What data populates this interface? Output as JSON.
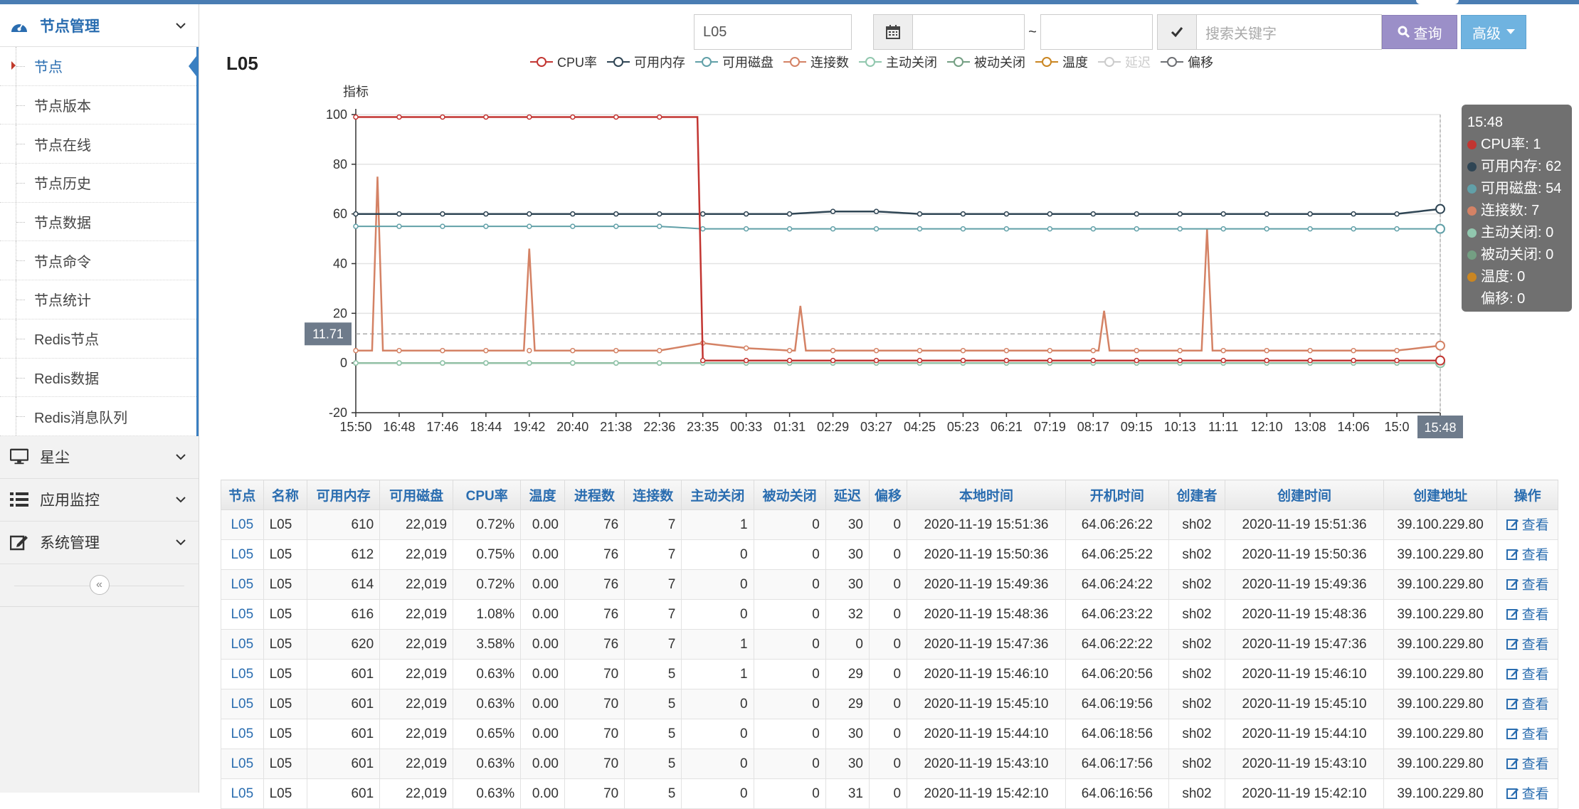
{
  "sidebar": {
    "groups": [
      {
        "label": "节点管理",
        "icon": "dashboard-icon",
        "expanded": true
      },
      {
        "label": "星尘",
        "icon": "monitor-icon",
        "expanded": false
      },
      {
        "label": "应用监控",
        "icon": "list-icon",
        "expanded": false
      },
      {
        "label": "系统管理",
        "icon": "edit-icon",
        "expanded": false
      }
    ],
    "items": [
      "节点",
      "节点版本",
      "节点在线",
      "节点历史",
      "节点数据",
      "节点命令",
      "节点统计",
      "Redis节点",
      "Redis数据",
      "Redis消息队列"
    ],
    "active_item": "节点",
    "collapse_glyph": "«"
  },
  "toolbar": {
    "node_value": "L05",
    "date_separator": "~",
    "search_placeholder": "搜索关键字",
    "query_label": "查询",
    "advanced_label": "高级"
  },
  "page_title": "L05",
  "colors": {
    "cpu": "#c23531",
    "mem": "#2f4554",
    "disk": "#61a0a8",
    "conn": "#d48265",
    "active_close": "#91c7ae",
    "passive_close": "#749f83",
    "temp": "#ca8622",
    "delay": "#bda29a",
    "offset": "#6e7074",
    "accent": "#2a6db0"
  },
  "chart_data": {
    "type": "line",
    "ylabel": "指标",
    "ylim": [
      -20,
      100
    ],
    "yticks": [
      "100",
      "80",
      "60",
      "40",
      "20",
      "0",
      "-20"
    ],
    "x": [
      "15:50",
      "16:48",
      "17:46",
      "18:44",
      "19:42",
      "20:40",
      "21:38",
      "22:36",
      "23:35",
      "00:33",
      "01:31",
      "02:29",
      "03:27",
      "04:25",
      "05:23",
      "06:21",
      "07:19",
      "08:17",
      "09:15",
      "10:13",
      "11:11",
      "12:10",
      "13:08",
      "14:06",
      "15:0",
      "15:48"
    ],
    "reference_value": "11.71",
    "pointer_x_label": "15:48",
    "legend": [
      {
        "name": "CPU率",
        "key": "cpu",
        "dim": false
      },
      {
        "name": "可用内存",
        "key": "mem",
        "dim": false
      },
      {
        "name": "可用磁盘",
        "key": "disk",
        "dim": false
      },
      {
        "name": "连接数",
        "key": "conn",
        "dim": false
      },
      {
        "name": "主动关闭",
        "key": "active_close",
        "dim": false
      },
      {
        "name": "被动关闭",
        "key": "passive_close",
        "dim": false
      },
      {
        "name": "温度",
        "key": "temp",
        "dim": false
      },
      {
        "name": "延迟",
        "key": "delay",
        "dim": true
      },
      {
        "name": "偏移",
        "key": "offset",
        "dim": false
      }
    ],
    "series": [
      {
        "name": "CPU率",
        "key": "cpu",
        "values": [
          99,
          99,
          99,
          99,
          99,
          99,
          99,
          99,
          1,
          1,
          1,
          1,
          1,
          1,
          1,
          1,
          1,
          1,
          1,
          1,
          1,
          1,
          1,
          1,
          1,
          1
        ]
      },
      {
        "name": "可用内存",
        "key": "mem",
        "values": [
          60,
          60,
          60,
          60,
          60,
          60,
          60,
          60,
          60,
          60,
          60,
          61,
          61,
          60,
          60,
          60,
          60,
          60,
          60,
          60,
          60,
          60,
          60,
          60,
          60,
          62
        ]
      },
      {
        "name": "可用磁盘",
        "key": "disk",
        "values": [
          55,
          55,
          55,
          55,
          55,
          55,
          55,
          55,
          54,
          54,
          54,
          54,
          54,
          54,
          54,
          54,
          54,
          54,
          54,
          54,
          54,
          54,
          54,
          54,
          54,
          54
        ]
      },
      {
        "name": "连接数",
        "key": "conn",
        "values": [
          5,
          5,
          5,
          5,
          5,
          5,
          5,
          5,
          8,
          6,
          5,
          5,
          5,
          5,
          5,
          5,
          5,
          5,
          5,
          5,
          5,
          5,
          5,
          5,
          5,
          7
        ]
      },
      {
        "name": "主动关闭",
        "key": "active_close",
        "values": [
          0,
          0,
          0,
          0,
          0,
          0,
          0,
          0,
          0,
          0,
          0,
          0,
          0,
          0,
          0,
          0,
          0,
          0,
          0,
          0,
          0,
          0,
          0,
          0,
          0,
          0
        ]
      },
      {
        "name": "被动关闭",
        "key": "passive_close",
        "values": [
          0,
          0,
          0,
          0,
          0,
          0,
          0,
          0,
          0,
          0,
          0,
          0,
          0,
          0,
          0,
          0,
          0,
          0,
          0,
          0,
          0,
          0,
          0,
          0,
          0,
          0
        ]
      },
      {
        "name": "温度",
        "key": "temp",
        "values": [
          0,
          0,
          0,
          0,
          0,
          0,
          0,
          0,
          0,
          0,
          0,
          0,
          0,
          0,
          0,
          0,
          0,
          0,
          0,
          0,
          0,
          0,
          0,
          0,
          0,
          0
        ]
      },
      {
        "name": "偏移",
        "key": "offset",
        "values": [
          0,
          0,
          0,
          0,
          0,
          0,
          0,
          0,
          0,
          0,
          0,
          0,
          0,
          0,
          0,
          0,
          0,
          0,
          0,
          0,
          0,
          0,
          0,
          0,
          0,
          0
        ]
      }
    ],
    "spikes": [
      {
        "series": "conn",
        "x_index": 0.5,
        "value": 75
      },
      {
        "series": "conn",
        "x_index": 4.0,
        "value": 46
      },
      {
        "series": "conn",
        "x_index": 10.3,
        "value": 23
      },
      {
        "series": "conn",
        "x_index": 17.3,
        "value": 21
      },
      {
        "series": "conn",
        "x_index": 19.6,
        "value": 54
      }
    ]
  },
  "tooltip": {
    "time": "15:48",
    "rows": [
      {
        "key": "cpu",
        "text": "CPU率: 1"
      },
      {
        "key": "mem",
        "text": "可用内存: 62"
      },
      {
        "key": "disk",
        "text": "可用磁盘: 54"
      },
      {
        "key": "conn",
        "text": "连接数: 7"
      },
      {
        "key": "active_close",
        "text": "主动关闭: 0"
      },
      {
        "key": "passive_close",
        "text": "被动关闭: 0"
      },
      {
        "key": "temp",
        "text": "温度: 0"
      },
      {
        "key": "",
        "text": "偏移: 0"
      }
    ]
  },
  "table": {
    "columns": [
      "节点",
      "名称",
      "可用内存",
      "可用磁盘",
      "CPU率",
      "温度",
      "进程数",
      "连接数",
      "主动关闭",
      "被动关闭",
      "延迟",
      "偏移",
      "本地时间",
      "开机时间",
      "创建者",
      "创建时间",
      "创建地址",
      "操作"
    ],
    "view_label": "查看",
    "rows": [
      [
        "L05",
        "L05",
        "610",
        "22,019",
        "0.72%",
        "0.00",
        "76",
        "7",
        "1",
        "0",
        "30",
        "0",
        "2020-11-19 15:51:36",
        "64.06:26:22",
        "sh02",
        "2020-11-19 15:51:36",
        "39.100.229.80"
      ],
      [
        "L05",
        "L05",
        "612",
        "22,019",
        "0.75%",
        "0.00",
        "76",
        "7",
        "0",
        "0",
        "30",
        "0",
        "2020-11-19 15:50:36",
        "64.06:25:22",
        "sh02",
        "2020-11-19 15:50:36",
        "39.100.229.80"
      ],
      [
        "L05",
        "L05",
        "614",
        "22,019",
        "0.72%",
        "0.00",
        "76",
        "7",
        "0",
        "0",
        "30",
        "0",
        "2020-11-19 15:49:36",
        "64.06:24:22",
        "sh02",
        "2020-11-19 15:49:36",
        "39.100.229.80"
      ],
      [
        "L05",
        "L05",
        "616",
        "22,019",
        "1.08%",
        "0.00",
        "76",
        "7",
        "0",
        "0",
        "32",
        "0",
        "2020-11-19 15:48:36",
        "64.06:23:22",
        "sh02",
        "2020-11-19 15:48:36",
        "39.100.229.80"
      ],
      [
        "L05",
        "L05",
        "620",
        "22,019",
        "3.58%",
        "0.00",
        "76",
        "7",
        "1",
        "0",
        "0",
        "0",
        "2020-11-19 15:47:36",
        "64.06:22:22",
        "sh02",
        "2020-11-19 15:47:36",
        "39.100.229.80"
      ],
      [
        "L05",
        "L05",
        "601",
        "22,019",
        "0.63%",
        "0.00",
        "70",
        "5",
        "1",
        "0",
        "29",
        "0",
        "2020-11-19 15:46:10",
        "64.06:20:56",
        "sh02",
        "2020-11-19 15:46:10",
        "39.100.229.80"
      ],
      [
        "L05",
        "L05",
        "601",
        "22,019",
        "0.63%",
        "0.00",
        "70",
        "5",
        "0",
        "0",
        "29",
        "0",
        "2020-11-19 15:45:10",
        "64.06:19:56",
        "sh02",
        "2020-11-19 15:45:10",
        "39.100.229.80"
      ],
      [
        "L05",
        "L05",
        "601",
        "22,019",
        "0.65%",
        "0.00",
        "70",
        "5",
        "0",
        "0",
        "30",
        "0",
        "2020-11-19 15:44:10",
        "64.06:18:56",
        "sh02",
        "2020-11-19 15:44:10",
        "39.100.229.80"
      ],
      [
        "L05",
        "L05",
        "601",
        "22,019",
        "0.63%",
        "0.00",
        "70",
        "5",
        "0",
        "0",
        "30",
        "0",
        "2020-11-19 15:43:10",
        "64.06:17:56",
        "sh02",
        "2020-11-19 15:43:10",
        "39.100.229.80"
      ],
      [
        "L05",
        "L05",
        "601",
        "22,019",
        "0.63%",
        "0.00",
        "70",
        "5",
        "0",
        "0",
        "31",
        "0",
        "2020-11-19 15:42:10",
        "64.06:16:56",
        "sh02",
        "2020-11-19 15:42:10",
        "39.100.229.80"
      ]
    ]
  }
}
